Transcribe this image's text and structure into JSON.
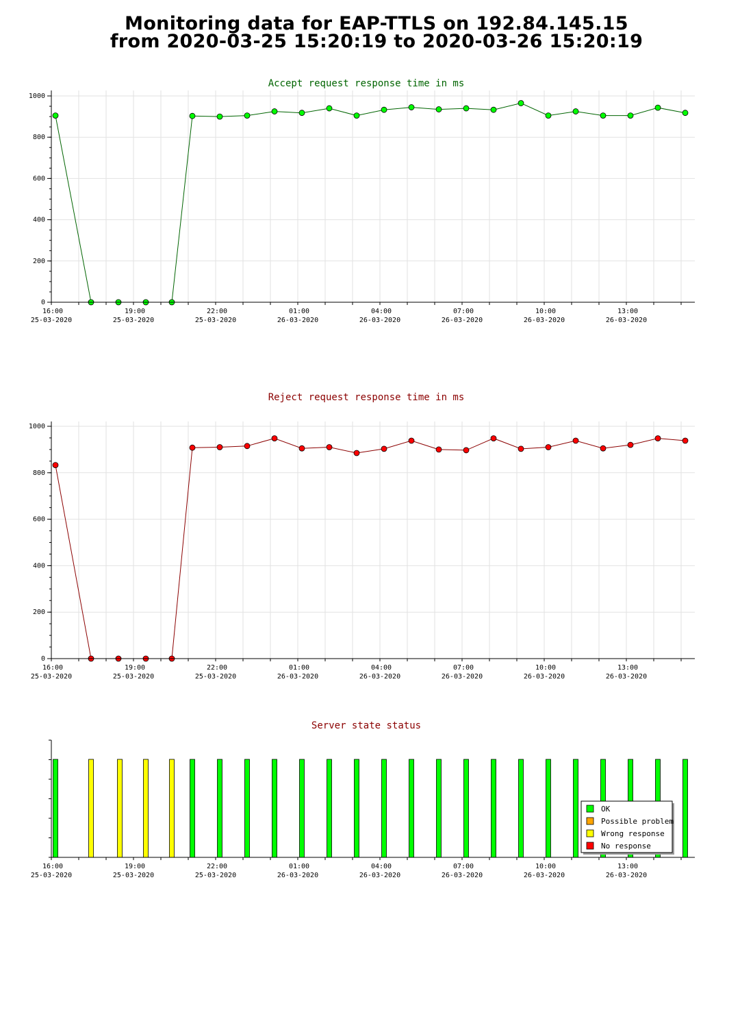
{
  "page": {
    "title_line1": "Monitoring data for EAP-TTLS on 192.84.145.15",
    "title_line2": "from 2020-03-25 15:20:19 to 2020-03-26 15:20:19"
  },
  "time_ticks": [
    {
      "hour": 16,
      "time": "16:00",
      "date": "25-03-2020"
    },
    {
      "hour": 19,
      "time": "19:00",
      "date": "25-03-2020"
    },
    {
      "hour": 22,
      "time": "22:00",
      "date": "25-03-2020"
    },
    {
      "hour": 25,
      "time": "01:00",
      "date": "26-03-2020"
    },
    {
      "hour": 28,
      "time": "04:00",
      "date": "26-03-2020"
    },
    {
      "hour": 31,
      "time": "07:00",
      "date": "26-03-2020"
    },
    {
      "hour": 34,
      "time": "10:00",
      "date": "26-03-2020"
    },
    {
      "hour": 37,
      "time": "13:00",
      "date": "26-03-2020"
    }
  ],
  "chart_data": [
    {
      "type": "line",
      "title": "Accept request response time in ms",
      "title_color": "#006400",
      "line_color": "#006400",
      "marker_color": "#00ff00",
      "xlabel": "",
      "ylabel": "",
      "ylim": [
        0,
        1000
      ],
      "yticks": [
        0,
        200,
        400,
        600,
        800,
        1000
      ],
      "grid": true,
      "x_hours": [
        16.15,
        17.45,
        18.45,
        19.45,
        20.4,
        21.15,
        22.15,
        23.15,
        24.15,
        25.15,
        26.15,
        27.15,
        28.15,
        29.15,
        30.15,
        31.15,
        32.15,
        33.15,
        34.15,
        35.15,
        36.15,
        37.15,
        38.15,
        39.15
      ],
      "values": [
        905,
        0,
        0,
        0,
        0,
        903,
        900,
        905,
        925,
        918,
        940,
        905,
        933,
        945,
        935,
        940,
        933,
        965,
        905,
        925,
        905,
        905,
        943,
        918
      ]
    },
    {
      "type": "line",
      "title": "Reject request response time in ms",
      "title_color": "#8b0000",
      "line_color": "#8b0000",
      "marker_color": "#ff0000",
      "xlabel": "",
      "ylabel": "",
      "ylim": [
        0,
        1000
      ],
      "yticks": [
        0,
        200,
        400,
        600,
        800,
        1000
      ],
      "grid": true,
      "x_hours": [
        16.15,
        17.45,
        18.45,
        19.45,
        20.4,
        21.15,
        22.15,
        23.15,
        24.15,
        25.15,
        26.15,
        27.15,
        28.15,
        29.15,
        30.15,
        31.15,
        32.15,
        33.15,
        34.15,
        35.15,
        36.15,
        37.15,
        38.15,
        39.15
      ],
      "values": [
        833,
        0,
        0,
        0,
        0,
        908,
        910,
        915,
        948,
        905,
        910,
        885,
        903,
        938,
        900,
        897,
        948,
        903,
        910,
        938,
        905,
        920,
        948,
        938
      ]
    },
    {
      "type": "bar",
      "title": "Server state status",
      "title_color": "#8b0000",
      "grid": false,
      "x_hours": [
        16.15,
        17.45,
        18.5,
        19.45,
        20.4,
        21.15,
        22.15,
        23.15,
        24.15,
        25.15,
        26.15,
        27.15,
        28.15,
        29.15,
        30.15,
        31.15,
        32.15,
        33.15,
        34.15,
        35.15,
        36.15,
        37.15,
        38.15,
        39.15
      ],
      "states": [
        "OK",
        "Wrong response",
        "Wrong response",
        "Wrong response",
        "Wrong response",
        "OK",
        "OK",
        "OK",
        "OK",
        "OK",
        "OK",
        "OK",
        "OK",
        "OK",
        "OK",
        "OK",
        "OK",
        "OK",
        "OK",
        "OK",
        "OK",
        "OK",
        "OK",
        "OK"
      ],
      "legend_position": "bottom-right",
      "legend": [
        {
          "label": "OK",
          "color": "#00ff00"
        },
        {
          "label": "Possible problem",
          "color": "#ffa500"
        },
        {
          "label": "Wrong response",
          "color": "#ffff00"
        },
        {
          "label": "No response",
          "color": "#ff0000"
        }
      ]
    }
  ]
}
